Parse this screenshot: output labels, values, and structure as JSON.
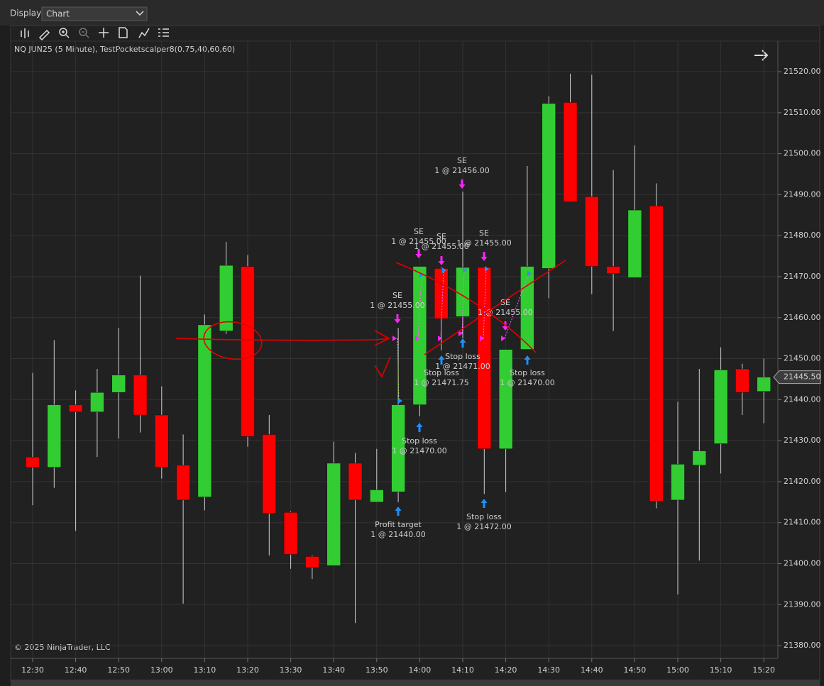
{
  "toolbar": {
    "label": "Display",
    "selected": "Chart"
  },
  "instrument": "NQ JUN25 (5 Minute), TestPocketscalper8(0.75,40,60,60)",
  "copyright": "© 2025 NinjaTrader, LLC",
  "chart_data": {
    "type": "candlestick",
    "categories": [
      "12:30",
      null,
      "12:40",
      null,
      "12:50",
      null,
      "13:00",
      null,
      "13:10",
      null,
      "13:20",
      null,
      "13:30",
      null,
      "13:40",
      null,
      "13:50",
      null,
      "14:00",
      null,
      "14:10",
      null,
      "14:20",
      null,
      "14:30",
      null,
      "14:40",
      null,
      "14:50",
      null,
      "15:00",
      null,
      "15:10",
      null,
      "15:20"
    ],
    "open": [
      21426,
      21423.5,
      21438.75,
      21437,
      21441.75,
      21446,
      21436.25,
      21424,
      21416.25,
      21456.75,
      21472.5,
      21431.5,
      21412.5,
      21401.75,
      21399.5,
      21424.5,
      21415,
      21417.5,
      21438.75,
      21472,
      21460.25,
      21472.25,
      21428,
      21452.25,
      21472,
      21512.5,
      21489.5,
      21472.5,
      21469.75,
      21487.25,
      21415.5,
      21424,
      21429.25,
      21447.5,
      21442
    ],
    "high": [
      21446.5,
      21454.5,
      21442.25,
      21447.5,
      21457.5,
      21470.25,
      21443.25,
      21431.5,
      21460.75,
      21478.5,
      21475.25,
      21436.25,
      21412.75,
      21402,
      21429.75,
      21427,
      21428,
      21457.5,
      21472.5,
      21472.25,
      21490.75,
      21472.25,
      21452.25,
      21497,
      21514,
      21519.5,
      21519.25,
      21496,
      21502,
      21492.75,
      21439.5,
      21447.5,
      21452.75,
      21448.75,
      21450
    ],
    "low": [
      21414.25,
      21418.5,
      21408,
      21426,
      21430.5,
      21432,
      21420.75,
      21390.25,
      21413,
      21456,
      21428.5,
      21402,
      21398.75,
      21396.25,
      21399.5,
      21385.5,
      21415,
      21415,
      21436,
      21452,
      21455,
      21417,
      21417.5,
      21452.25,
      21464.75,
      21488.25,
      21465.75,
      21456.75,
      21469.75,
      21413.5,
      21392.5,
      21400.75,
      21422,
      21436.25,
      21434.25
    ],
    "close": [
      21423.5,
      21438.75,
      21437,
      21441.75,
      21446,
      21436.25,
      21423.5,
      21415.5,
      21458.25,
      21472.75,
      21431,
      21412.25,
      21402.25,
      21399,
      21424.5,
      21415.5,
      21418,
      21438.75,
      21472.5,
      21459.75,
      21472.25,
      21428,
      21452.25,
      21472.5,
      21512.25,
      21488.25,
      21472.5,
      21470.75,
      21486.25,
      21415.25,
      21424.25,
      21427.5,
      21447.25,
      21441.75,
      21445.5
    ],
    "up_color": "#32cd32",
    "down_color": "#ff0000",
    "ylim": [
      21376.9,
      21527.1
    ],
    "yticks": [
      {
        "value": 21380,
        "label": "21380.00"
      },
      {
        "value": 21390,
        "label": "21390.00"
      },
      {
        "value": 21400,
        "label": "21400.00"
      },
      {
        "value": 21410,
        "label": "21410.00"
      },
      {
        "value": 21420,
        "label": "21420.00"
      },
      {
        "value": 21430,
        "label": "21430.00"
      },
      {
        "value": 21440,
        "label": "21440.00"
      },
      {
        "value": 21450,
        "label": "21450.00"
      },
      {
        "value": 21460,
        "label": "21460.00"
      },
      {
        "value": 21470,
        "label": "21470.00"
      },
      {
        "value": 21480,
        "label": "21480.00"
      },
      {
        "value": 21490,
        "label": "21490.00"
      },
      {
        "value": 21500,
        "label": "21500.00"
      },
      {
        "value": 21510,
        "label": "21510.00"
      },
      {
        "value": 21520,
        "label": "21520.00"
      }
    ],
    "last_price": {
      "value": 21445.5,
      "label": "21445.50"
    },
    "grid": true,
    "annotations": [
      {
        "title": "SE",
        "detail": "1 @ 21455.00"
      },
      {
        "title": "SE",
        "detail": "1 @ 21455.00"
      },
      {
        "title": "SE",
        "detail": "1 @ 21455.00"
      },
      {
        "title": "SE",
        "detail": "1 @ 21456.00"
      },
      {
        "title": "SE",
        "detail": "1 @ 21455.00"
      },
      {
        "title": "SE",
        "detail": "1 @ 21455.00"
      },
      {
        "title": "Profit target",
        "detail": "1 @ 21440.00"
      },
      {
        "title": "Stop loss",
        "detail": "1 @ 21470.00"
      },
      {
        "title": "Stop loss",
        "detail": "1 @ 21471.75"
      },
      {
        "title": "Stop loss",
        "detail": "1 @ 21471.00"
      },
      {
        "title": "Stop loss",
        "detail": "1 @ 21472.00"
      },
      {
        "title": "Stop loss",
        "detail": "1 @ 21470.00"
      }
    ]
  }
}
